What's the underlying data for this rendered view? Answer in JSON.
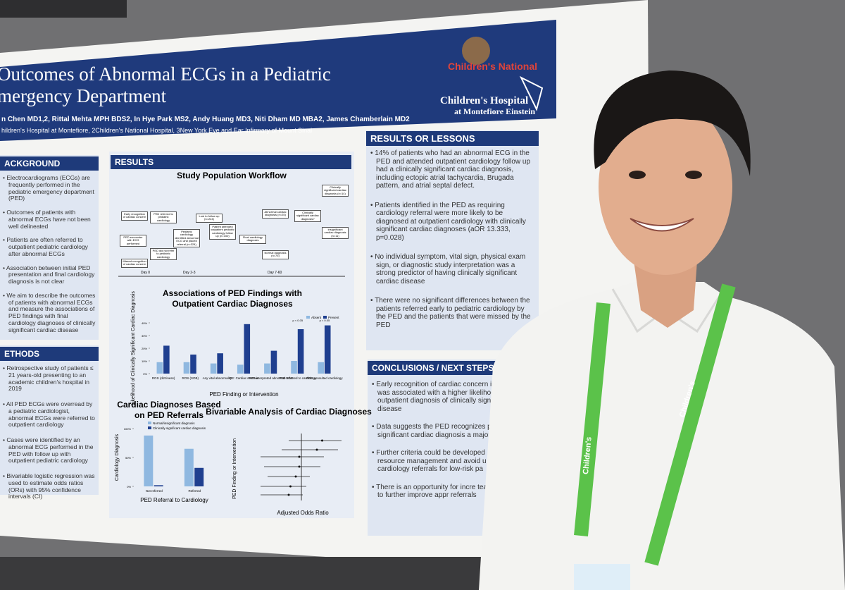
{
  "poster": {
    "title_line1": "Outcomes of Abnormal ECGs in a Pediatric",
    "title_line2": "mergency Department",
    "authors": "n Chen MD1,2, Rittal Mehta MPH BDS2, In Hye Park MS2, Andy Huang MD3, Niti Dham MD MBA2, James Chamberlain MD2",
    "affiliations": "hildren's Hospital at Montefiore, 2Children's National Hospital, 3New York Eye and Ear Infirmary of Mount Sinai",
    "logo1": "Children's National",
    "logo2_line1": "Children's Hospital",
    "logo2_line2": "at Montefiore Einstein",
    "background": {
      "heading": "ACKGROUND",
      "items": [
        "Electrocardiograms (ECGs) are frequently performed in the pediatric emergency department (PED)",
        "Outcomes of patients with abnormal ECGs have not been well delineated",
        "Patients are often referred to outpatient pediatric cardiology after abnormal ECGs",
        "Association between initial PED presentation and final cardiology diagnosis is not clear",
        "We aim to describe the outcomes of patients with abnormal ECGs and measure the associations of PED findings with final cardiology diagnoses of clinically significant cardiac disease"
      ]
    },
    "methods": {
      "heading": "ETHODS",
      "items": [
        "Retrospective study of patients ≤ 21 years-old presenting to an academic children's hospital in 2019",
        "All PED ECGs were overread by a pediatric cardiologist, abnormal ECGs were referred to outpatient cardiology",
        "Cases were identified by an abnormal ECG performed in the PED with follow up with outpatient pediatric cardiology",
        "Bivariable logistic regression was used to estimate odds ratios (ORs) with 95% confidence intervals (CI)"
      ]
    },
    "results": {
      "heading": "RESULTS",
      "workflow_title": "Study Population Workflow",
      "workflow_nodes": [
        "Early recognition of cardiac concern",
        "PED encounter with ECG performed",
        "Missed recognition of cardiac concern",
        "PED referred to pediatric cardiology",
        "PED did not refer to pediatric cardiology",
        "Pediatric cardiology identified abnormal ECG and placed referral (n=324)",
        "Lost to follow up (n=224)",
        "Patient attended outpatient pediatric cardiology follow up (n=100)",
        "Final cardiology diagnosis",
        "Abnormal cardiac diagnosis (n=25)",
        "Normal diagnosis (n=75)",
        "Clinically significant cardiac diagnosis?",
        "Clinically significant cardiac diagnosis (n=14)",
        "Insignificant cardiac diagnosis (n=11)"
      ],
      "workflow_days": [
        "Day 0",
        "Day 2-3",
        "Day 7-60"
      ]
    },
    "lessons": {
      "heading": "RESULTS OR LESSONS",
      "items": [
        "14% of patients who had an abnormal ECG in the PED and attended outpatient cardiology follow up had a clinically significant cardiac diagnosis, including ectopic atrial tachycardia, Brugada pattern, and atrial septal defect.",
        "Patients identified in the PED as requiring cardiology referral were more likely to be diagnosed at outpatient cardiology with clinically significant cardiac diagnoses (aOR 13.333, p=0.028)",
        "No individual symptom, vital sign, physical exam sign, or diagnostic study interpretation was a strong predictor of having clinically significant cardiac disease",
        "There were no significant differences between the patients referred early to pediatric cardiology by the PED and the patients that were missed by the PED"
      ]
    },
    "conclusions": {
      "heading": "CONCLUSIONS / NEXT STEPS",
      "items": [
        "Early recognition of cardiac concern in th was associated with a higher likelihood outpatient diagnosis of clinically signific disease",
        "Data suggests the PED recognizes pa significant cardiac diagnosis a majori",
        "Further criteria could be developed resource management and avoid u cardiology referrals for low-risk pa",
        "There is an opportunity for incre teaching to further improve appr referrals"
      ]
    },
    "forest": {
      "title": "Bivariable Analysis of Cardiac Diagnoses",
      "x_label": "Adjusted Odds Ratio",
      "y_label": "PED Finding or Intervention"
    },
    "lanyard_text": "Children's"
  },
  "chart_data": [
    {
      "type": "bar",
      "title": "Associations of PED Findings with Outpatient Cardiac Diagnoses",
      "y_label": "Likelihood of Clinically Significant Cardiac Diagnosis",
      "x_label": "PED Finding or Intervention",
      "categories": [
        "ROS (dizziness)",
        "ROS (SOB)",
        "Any vital abnormality",
        "PE: Cardiac murmur",
        "PED interpreted abnormal ECG",
        "PED referred to cardiology",
        "PED consulted cardiology"
      ],
      "series": [
        {
          "name": "Absent",
          "color": "#8fb8e0",
          "values": [
            9,
            9,
            8,
            7,
            8,
            10,
            9
          ]
        },
        {
          "name": "Present",
          "color": "#1f3f8f",
          "values": [
            22,
            15,
            16,
            39,
            18,
            35,
            38
          ]
        }
      ],
      "ylim": [
        0,
        40
      ],
      "yticks": [
        {
          "value": 0,
          "label": "0%"
        },
        {
          "value": 10,
          "label": "10%"
        },
        {
          "value": 20,
          "label": "20%"
        },
        {
          "value": 30,
          "label": "30%"
        },
        {
          "value": 40,
          "label": "40%"
        }
      ],
      "annotations": [
        "p < 0.05",
        "p < 0.05"
      ]
    },
    {
      "type": "bar",
      "title": "Cardiac Diagnoses Based on PED Referrals",
      "y_label": "Cardiology Diagnosis",
      "x_label": "PED Referral to Cardiology",
      "categories": [
        "Not referred",
        "Referred"
      ],
      "series": [
        {
          "name": "Normal/insignificant diagnosis",
          "color": "#8fb8e0",
          "values": [
            88,
            65
          ]
        },
        {
          "name": "Clinically significant cardiac diagnosis",
          "color": "#1f3f8f",
          "values": [
            2,
            32
          ]
        }
      ],
      "ylim": [
        0,
        100
      ],
      "yticks": [
        {
          "value": 0,
          "label": "0%"
        },
        {
          "value": 50,
          "label": "50%"
        },
        {
          "value": 100,
          "label": "100%"
        }
      ]
    }
  ]
}
